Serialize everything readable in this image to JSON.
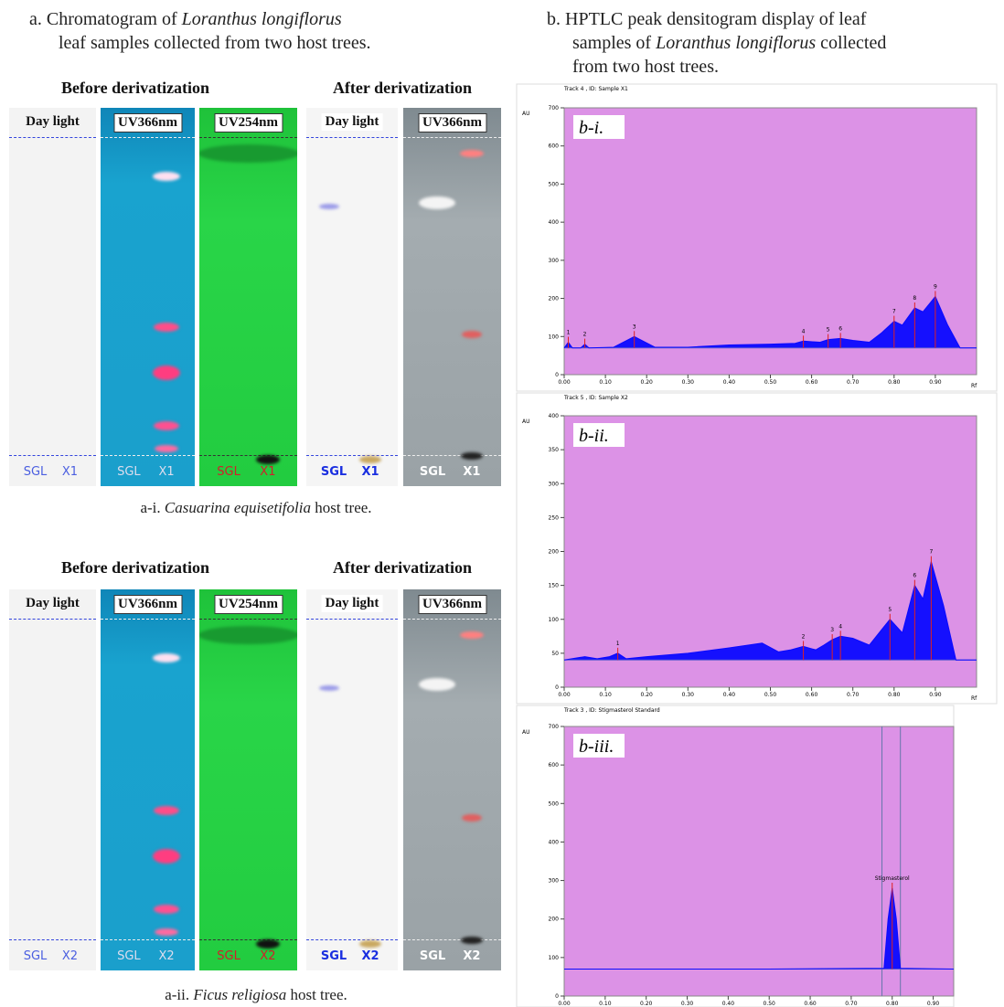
{
  "panel_a": {
    "title": [
      "a. Chromatogram of ",
      "Loranthus longiflorus",
      "leaf samples collected from two host trees."
    ],
    "rows": [
      {
        "headings": [
          "Before derivatization",
          "After derivatization"
        ],
        "plates": [
          {
            "label": "Day light",
            "lanes": [
              "SGL",
              "X1"
            ]
          },
          {
            "label": "UV366nm",
            "lanes": [
              "SGL",
              "X1"
            ]
          },
          {
            "label": "UV254nm",
            "lanes": [
              "SGL",
              "X1"
            ]
          },
          {
            "label": "Day light",
            "lanes": [
              "SGL",
              "X1"
            ]
          },
          {
            "label": "UV366nm",
            "lanes": [
              "SGL",
              "X1"
            ]
          }
        ],
        "caption": [
          "a-i. ",
          "Casuarina equisetifolia",
          " host tree."
        ]
      },
      {
        "headings": [
          "Before derivatization",
          "After derivatization"
        ],
        "plates": [
          {
            "label": "Day light",
            "lanes": [
              "SGL",
              "X2"
            ]
          },
          {
            "label": "UV366nm",
            "lanes": [
              "SGL",
              "X2"
            ]
          },
          {
            "label": "UV254nm",
            "lanes": [
              "SGL",
              "X2"
            ]
          },
          {
            "label": "Day light",
            "lanes": [
              "SGL",
              "X2"
            ]
          },
          {
            "label": "UV366nm",
            "lanes": [
              "SGL",
              "X2"
            ]
          }
        ],
        "caption": [
          "a-ii. ",
          "Ficus religiosa",
          " host tree."
        ]
      }
    ]
  },
  "panel_b": {
    "title": [
      "b. HPTLC peak densitogram display of leaf",
      "samples of ",
      "Loranthus longiflorus",
      " collected",
      "from two host trees."
    ]
  },
  "chart_data": [
    {
      "type": "line",
      "header": "Track 4 , ID: Sample X1",
      "label": "b-i.",
      "y_label": "AU",
      "x_label": "Rf",
      "xlim": [
        0,
        1.0
      ],
      "ylim": [
        0,
        700
      ],
      "xticks": [
        {
          "value": 0,
          "label": "0.00"
        },
        {
          "value": 0.1,
          "label": "0.10"
        },
        {
          "value": 0.2,
          "label": "0.20"
        },
        {
          "value": 0.3,
          "label": "0.30"
        },
        {
          "value": 0.4,
          "label": "0.40"
        },
        {
          "value": 0.5,
          "label": "0.50"
        },
        {
          "value": 0.6,
          "label": "0.60"
        },
        {
          "value": 0.7,
          "label": "0.70"
        },
        {
          "value": 0.8,
          "label": "0.80"
        },
        {
          "value": 0.9,
          "label": "0.90"
        }
      ],
      "yticks": [
        0,
        100,
        200,
        300,
        400,
        500,
        600,
        700
      ],
      "baseline": 70,
      "color": "#0a0aff",
      "x": [
        0.0,
        0.01,
        0.02,
        0.04,
        0.05,
        0.06,
        0.12,
        0.17,
        0.22,
        0.3,
        0.4,
        0.5,
        0.56,
        0.58,
        0.62,
        0.64,
        0.67,
        0.7,
        0.74,
        0.77,
        0.8,
        0.82,
        0.85,
        0.87,
        0.9,
        0.93,
        0.96,
        1.0
      ],
      "values": [
        70,
        85,
        70,
        70,
        80,
        70,
        72,
        100,
        72,
        72,
        78,
        80,
        82,
        88,
        85,
        92,
        95,
        90,
        85,
        110,
        140,
        130,
        175,
        165,
        205,
        130,
        70,
        70
      ],
      "peaks": [
        {
          "label": "1",
          "x": 0.01,
          "y": 85
        },
        {
          "label": "2",
          "x": 0.05,
          "y": 80
        },
        {
          "label": "3",
          "x": 0.17,
          "y": 100
        },
        {
          "label": "4",
          "x": 0.58,
          "y": 88
        },
        {
          "label": "5",
          "x": 0.64,
          "y": 92
        },
        {
          "label": "6",
          "x": 0.67,
          "y": 95
        },
        {
          "label": "7",
          "x": 0.8,
          "y": 140
        },
        {
          "label": "8",
          "x": 0.85,
          "y": 175
        },
        {
          "label": "9",
          "x": 0.9,
          "y": 205
        }
      ]
    },
    {
      "type": "line",
      "header": "Track 5 , ID: Sample X2",
      "label": "b-ii.",
      "y_label": "AU",
      "x_label": "Rf",
      "xlim": [
        0,
        1.0
      ],
      "ylim": [
        0,
        400
      ],
      "xticks": [
        {
          "value": 0,
          "label": "0.00"
        },
        {
          "value": 0.1,
          "label": "0.10"
        },
        {
          "value": 0.2,
          "label": "0.20"
        },
        {
          "value": 0.3,
          "label": "0.30"
        },
        {
          "value": 0.4,
          "label": "0.40"
        },
        {
          "value": 0.5,
          "label": "0.50"
        },
        {
          "value": 0.6,
          "label": "0.60"
        },
        {
          "value": 0.7,
          "label": "0.70"
        },
        {
          "value": 0.8,
          "label": "0.80"
        },
        {
          "value": 0.9,
          "label": "0.90"
        }
      ],
      "yticks": [
        0,
        50,
        100,
        150,
        200,
        250,
        300,
        350,
        400
      ],
      "baseline": 40,
      "color": "#0a0aff",
      "x": [
        0.0,
        0.05,
        0.08,
        0.11,
        0.13,
        0.15,
        0.2,
        0.3,
        0.4,
        0.48,
        0.52,
        0.55,
        0.58,
        0.61,
        0.63,
        0.65,
        0.67,
        0.7,
        0.74,
        0.77,
        0.79,
        0.82,
        0.85,
        0.87,
        0.89,
        0.92,
        0.95,
        1.0
      ],
      "values": [
        40,
        45,
        42,
        45,
        50,
        42,
        45,
        50,
        58,
        65,
        52,
        55,
        60,
        55,
        62,
        70,
        75,
        72,
        62,
        85,
        100,
        80,
        150,
        130,
        185,
        120,
        40,
        40
      ],
      "peaks": [
        {
          "label": "1",
          "x": 0.13,
          "y": 50
        },
        {
          "label": "2",
          "x": 0.58,
          "y": 60
        },
        {
          "label": "3",
          "x": 0.65,
          "y": 70
        },
        {
          "label": "4",
          "x": 0.67,
          "y": 75
        },
        {
          "label": "5",
          "x": 0.79,
          "y": 100
        },
        {
          "label": "6",
          "x": 0.85,
          "y": 150
        },
        {
          "label": "7",
          "x": 0.89,
          "y": 185
        }
      ]
    },
    {
      "type": "line",
      "header": "Track 3 , ID: Stigmasterol Standard",
      "label": "b-iii.",
      "y_label": "AU",
      "xlim": [
        0,
        0.95
      ],
      "ylim": [
        0,
        700
      ],
      "xticks": [
        {
          "value": 0,
          "label": "0.00"
        },
        {
          "value": 0.1,
          "label": "0.10"
        },
        {
          "value": 0.2,
          "label": "0.20"
        },
        {
          "value": 0.3,
          "label": "0.30"
        },
        {
          "value": 0.4,
          "label": "0.40"
        },
        {
          "value": 0.5,
          "label": "0.50"
        },
        {
          "value": 0.6,
          "label": "0.60"
        },
        {
          "value": 0.7,
          "label": "0.70"
        },
        {
          "value": 0.8,
          "label": "0.80"
        },
        {
          "value": 0.9,
          "label": "0.90"
        }
      ],
      "yticks": [
        0,
        100,
        200,
        300,
        400,
        500,
        600,
        700
      ],
      "baseline": 70,
      "color": "#0a0aff",
      "x": [
        0.0,
        0.5,
        0.78,
        0.79,
        0.8,
        0.81,
        0.82,
        0.95
      ],
      "values": [
        70,
        70,
        72,
        200,
        280,
        200,
        72,
        70
      ],
      "peaks": [
        {
          "label": "Stigmasterol",
          "x": 0.8,
          "y": 280
        }
      ],
      "markers": [
        0.775,
        0.82
      ]
    }
  ]
}
